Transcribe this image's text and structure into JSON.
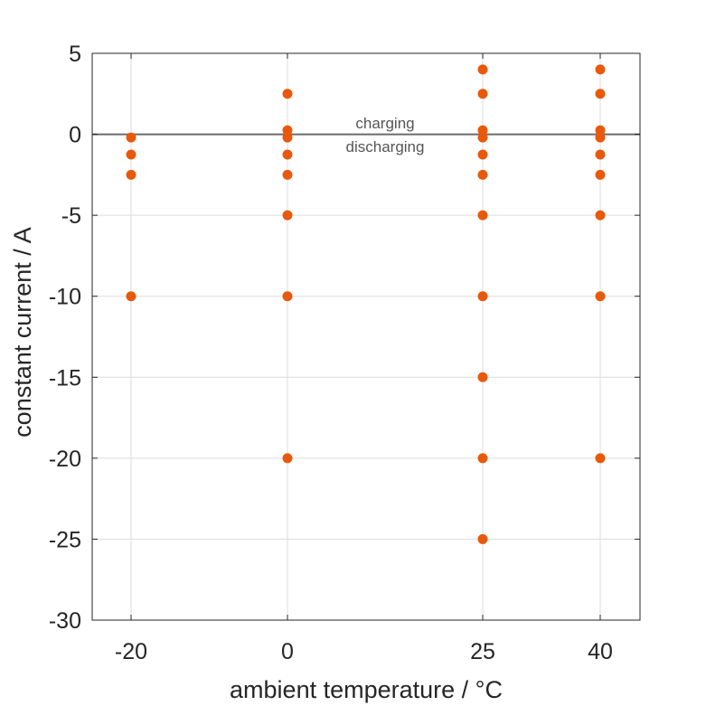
{
  "chart_data": {
    "type": "scatter",
    "title": "",
    "xlabel": "ambient temperature / °C",
    "ylabel": "constant current / A",
    "xlim": [
      -20,
      40
    ],
    "ylim": [
      -30,
      5
    ],
    "xticks": [
      -20,
      0,
      25,
      40
    ],
    "xtick_labels": [
      "-20",
      "0",
      "25",
      "40"
    ],
    "yticks": [
      5,
      0,
      -5,
      -10,
      -15,
      -20,
      -25,
      -30
    ],
    "ytick_labels": [
      "5",
      "0",
      "-5",
      "-10",
      "-15",
      "-20",
      "-25",
      "-30"
    ],
    "grid": true,
    "legend": "none",
    "reference_line": {
      "y": 0,
      "color": "#6b6b6b"
    },
    "annotations": [
      {
        "text": "charging",
        "x": 12.5,
        "y": 0.7
      },
      {
        "text": "discharging",
        "x": 12.5,
        "y": -0.75
      }
    ],
    "point_color": "#e8590c",
    "points": [
      {
        "x": -20,
        "y": -0.2
      },
      {
        "x": -20,
        "y": -1.25
      },
      {
        "x": -20,
        "y": -2.5
      },
      {
        "x": -20,
        "y": -10
      },
      {
        "x": 0,
        "y": 2.5
      },
      {
        "x": 0,
        "y": 0.25
      },
      {
        "x": 0,
        "y": -0.2
      },
      {
        "x": 0,
        "y": -1.25
      },
      {
        "x": 0,
        "y": -2.5
      },
      {
        "x": 0,
        "y": -5
      },
      {
        "x": 0,
        "y": -10
      },
      {
        "x": 0,
        "y": -20
      },
      {
        "x": 25,
        "y": 4
      },
      {
        "x": 25,
        "y": 2.5
      },
      {
        "x": 25,
        "y": 0.25
      },
      {
        "x": 25,
        "y": -0.2
      },
      {
        "x": 25,
        "y": -1.25
      },
      {
        "x": 25,
        "y": -2.5
      },
      {
        "x": 25,
        "y": -5
      },
      {
        "x": 25,
        "y": -10
      },
      {
        "x": 25,
        "y": -15
      },
      {
        "x": 25,
        "y": -20
      },
      {
        "x": 25,
        "y": -25
      },
      {
        "x": 40,
        "y": 4
      },
      {
        "x": 40,
        "y": 2.5
      },
      {
        "x": 40,
        "y": 0.25
      },
      {
        "x": 40,
        "y": -0.2
      },
      {
        "x": 40,
        "y": -1.25
      },
      {
        "x": 40,
        "y": -2.5
      },
      {
        "x": 40,
        "y": -5
      },
      {
        "x": 40,
        "y": -10
      },
      {
        "x": 40,
        "y": -20
      }
    ]
  }
}
